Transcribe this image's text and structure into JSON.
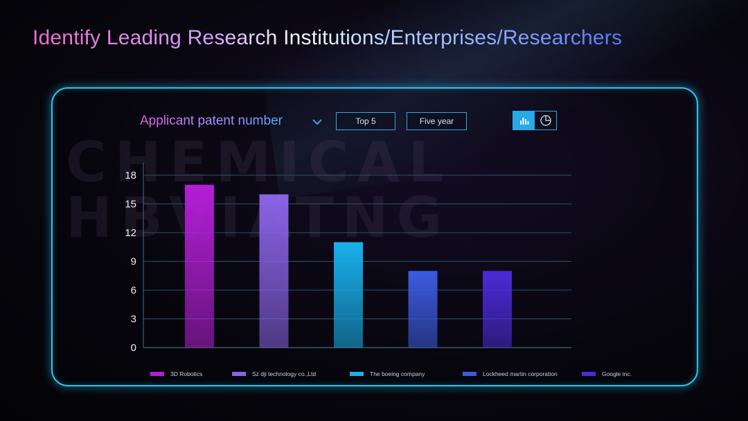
{
  "page": {
    "title": "Identify Leading Research Institutions/Enterprises/Researchers"
  },
  "controls": {
    "metric_selector": "Applicant patent number",
    "top_button": "Top 5",
    "period_button": "Five year",
    "view_toggle": {
      "active": "bar-chart-icon",
      "inactive": "pie-chart-icon"
    }
  },
  "colors": {
    "accent": "#2ec3f0",
    "series": [
      "#b31fd6",
      "#8a63e6",
      "#18b0ec",
      "#3c5be0",
      "#4a2bd6"
    ]
  },
  "chart_data": {
    "type": "bar",
    "categories": [
      "3D Robotics",
      "Sz dji technology co.,Ltd",
      "The boeing company",
      "Lockheed martin corporation",
      "Google inc."
    ],
    "values": [
      17,
      16,
      11,
      8,
      8
    ],
    "ylim": [
      0,
      18
    ],
    "yticks": [
      0,
      3,
      6,
      9,
      12,
      15,
      18
    ],
    "grid": true,
    "legend_position": "bottom"
  }
}
